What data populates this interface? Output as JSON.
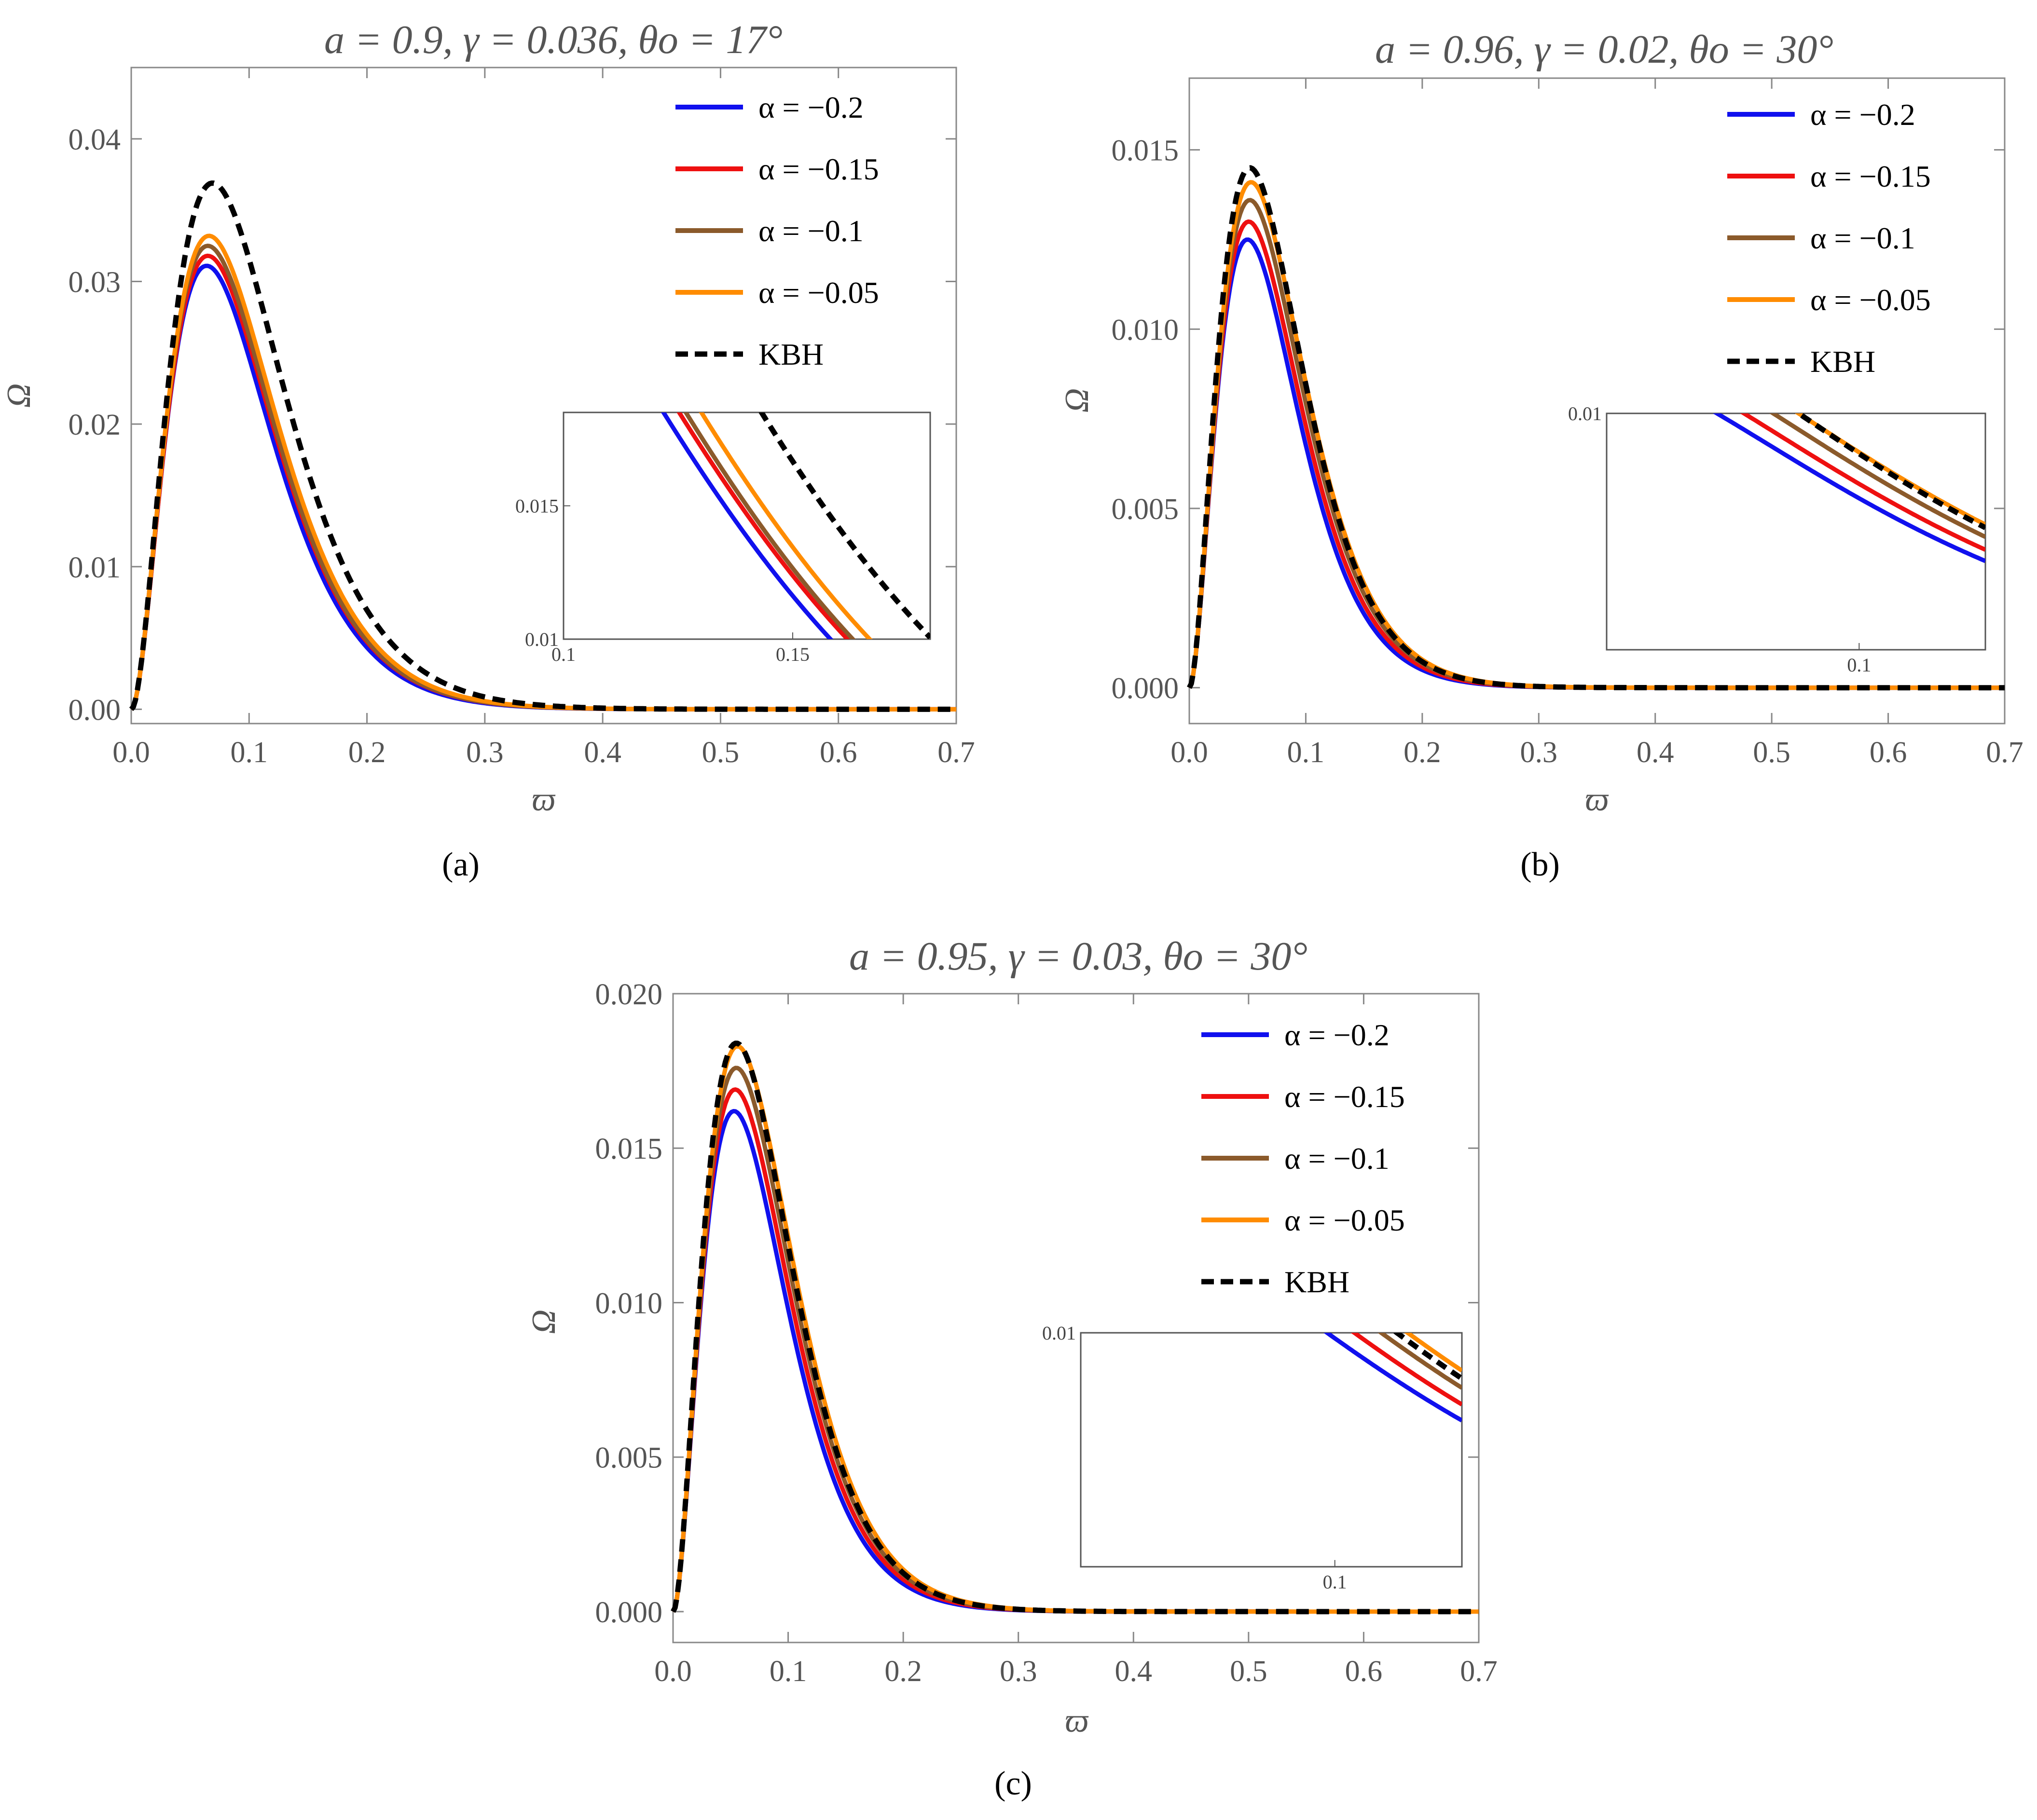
{
  "chart_data": [
    {
      "type": "line",
      "panel_label": "(a)",
      "title": "a = 0.9, γ = 0.036, θo = 17°",
      "xlabel": "ϖ",
      "ylabel": "Ω",
      "xlim": [
        0,
        0.7
      ],
      "ylim": [
        -0.001,
        0.045
      ],
      "xticks": [
        0.0,
        0.1,
        0.2,
        0.3,
        0.4,
        0.5,
        0.6,
        0.7
      ],
      "xtick_labels": [
        "0.0",
        "0.1",
        "0.2",
        "0.3",
        "0.4",
        "0.5",
        "0.6",
        "0.7"
      ],
      "yticks": [
        0.0,
        0.01,
        0.02,
        0.03,
        0.04
      ],
      "ytick_labels": [
        "0.00",
        "0.01",
        "0.02",
        "0.03",
        "0.04"
      ],
      "legend_position": "top-right",
      "series": [
        {
          "name": "α = −0.2",
          "color": "#1010ee",
          "dash": false,
          "peak_x": 0.064,
          "peak_y": 0.0311,
          "spread": 0.9
        },
        {
          "name": "α = −0.15",
          "color": "#ee1010",
          "dash": false,
          "peak_x": 0.065,
          "peak_y": 0.0318,
          "spread": 0.93
        },
        {
          "name": "α = −0.1",
          "color": "#8b5a2b",
          "dash": false,
          "peak_x": 0.065,
          "peak_y": 0.0325,
          "spread": 0.96
        },
        {
          "name": "α = −0.05",
          "color": "#ff8c00",
          "dash": false,
          "peak_x": 0.066,
          "peak_y": 0.0332,
          "spread": 1.0
        },
        {
          "name": "KBH",
          "color": "#000000",
          "dash": true,
          "peak_x": 0.069,
          "peak_y": 0.0369,
          "spread": 1.08
        }
      ],
      "inset": {
        "xlim": [
          0.1,
          0.18
        ],
        "ylim": [
          0.01,
          0.0185
        ],
        "xtick_labels": [
          "0.1",
          "0.15"
        ],
        "xticks": [
          0.1,
          0.15
        ],
        "ytick_labels": [
          "0.01",
          "0.015"
        ],
        "yticks": [
          0.01,
          0.015
        ],
        "position": "right-middle"
      }
    },
    {
      "type": "line",
      "panel_label": "(b)",
      "title": "a = 0.96, γ = 0.02, θo = 30°",
      "xlabel": "ϖ",
      "ylabel": "Ω",
      "xlim": [
        0,
        0.7
      ],
      "ylim": [
        -0.001,
        0.017
      ],
      "xticks": [
        0.0,
        0.1,
        0.2,
        0.3,
        0.4,
        0.5,
        0.6,
        0.7
      ],
      "xtick_labels": [
        "0.0",
        "0.1",
        "0.2",
        "0.3",
        "0.4",
        "0.5",
        "0.6",
        "0.7"
      ],
      "yticks": [
        0.0,
        0.005,
        0.01,
        0.015
      ],
      "ytick_labels": [
        "0.000",
        "0.005",
        "0.010",
        "0.015"
      ],
      "legend_position": "top-right",
      "series": [
        {
          "name": "α = −0.2",
          "color": "#1010ee",
          "dash": false,
          "peak_x": 0.05,
          "peak_y": 0.0125,
          "spread": 0.72
        },
        {
          "name": "α = −0.15",
          "color": "#ee1010",
          "dash": false,
          "peak_x": 0.051,
          "peak_y": 0.013,
          "spread": 0.74
        },
        {
          "name": "α = −0.1",
          "color": "#8b5a2b",
          "dash": false,
          "peak_x": 0.052,
          "peak_y": 0.0136,
          "spread": 0.76
        },
        {
          "name": "α = −0.05",
          "color": "#ff8c00",
          "dash": false,
          "peak_x": 0.053,
          "peak_y": 0.0141,
          "spread": 0.78
        },
        {
          "name": "KBH",
          "color": "#000000",
          "dash": true,
          "peak_x": 0.052,
          "peak_y": 0.0145,
          "spread": 0.77
        }
      ],
      "inset": {
        "xlim": [
          0.06,
          0.12
        ],
        "ylim": [
          0.001,
          0.01
        ],
        "xtick_labels": [
          "0.1"
        ],
        "xticks": [
          0.1
        ],
        "ytick_labels": [
          "0.01"
        ],
        "yticks": [
          0.01
        ],
        "position": "right-middle"
      }
    },
    {
      "type": "line",
      "panel_label": "(c)",
      "title": "a = 0.95, γ = 0.03, θo = 30°",
      "xlabel": "ϖ",
      "ylabel": "Ω",
      "xlim": [
        0,
        0.7
      ],
      "ylim": [
        -0.001,
        0.02
      ],
      "xticks": [
        0.0,
        0.1,
        0.2,
        0.3,
        0.4,
        0.5,
        0.6,
        0.7
      ],
      "xtick_labels": [
        "0.0",
        "0.1",
        "0.2",
        "0.3",
        "0.4",
        "0.5",
        "0.6",
        "0.7"
      ],
      "yticks": [
        0.0,
        0.005,
        0.01,
        0.015,
        0.02
      ],
      "ytick_labels": [
        "0.000",
        "0.005",
        "0.010",
        "0.015",
        "0.020"
      ],
      "legend_position": "top-right",
      "series": [
        {
          "name": "α = −0.2",
          "color": "#1010ee",
          "dash": false,
          "peak_x": 0.053,
          "peak_y": 0.0162,
          "spread": 0.72
        },
        {
          "name": "α = −0.15",
          "color": "#ee1010",
          "dash": false,
          "peak_x": 0.054,
          "peak_y": 0.0169,
          "spread": 0.74
        },
        {
          "name": "α = −0.1",
          "color": "#8b5a2b",
          "dash": false,
          "peak_x": 0.055,
          "peak_y": 0.0176,
          "spread": 0.76
        },
        {
          "name": "α = −0.05",
          "color": "#ff8c00",
          "dash": false,
          "peak_x": 0.056,
          "peak_y": 0.0183,
          "spread": 0.78
        },
        {
          "name": "KBH",
          "color": "#000000",
          "dash": true,
          "peak_x": 0.055,
          "peak_y": 0.0184,
          "spread": 0.77
        }
      ],
      "inset": {
        "xlim": [
          0.06,
          0.12
        ],
        "ylim": [
          0.001,
          0.01
        ],
        "xtick_labels": [
          "0.1"
        ],
        "xticks": [
          0.1
        ],
        "ytick_labels": [
          "0.01"
        ],
        "yticks": [
          0.01
        ],
        "position": "right-middle"
      }
    }
  ]
}
